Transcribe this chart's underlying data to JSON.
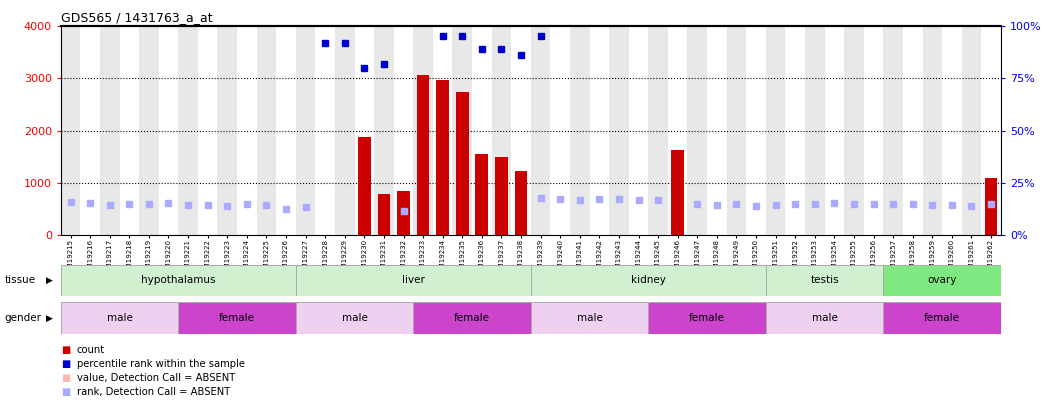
{
  "title": "GDS565 / 1431763_a_at",
  "samples": [
    "GSM19215",
    "GSM19216",
    "GSM19217",
    "GSM19218",
    "GSM19219",
    "GSM19220",
    "GSM19221",
    "GSM19222",
    "GSM19223",
    "GSM19224",
    "GSM19225",
    "GSM19226",
    "GSM19227",
    "GSM19228",
    "GSM19229",
    "GSM19230",
    "GSM19231",
    "GSM19232",
    "GSM19233",
    "GSM19234",
    "GSM19235",
    "GSM19236",
    "GSM19237",
    "GSM19238",
    "GSM19239",
    "GSM19240",
    "GSM19241",
    "GSM19242",
    "GSM19243",
    "GSM19244",
    "GSM19245",
    "GSM19246",
    "GSM19247",
    "GSM19248",
    "GSM19249",
    "GSM19250",
    "GSM19251",
    "GSM19252",
    "GSM19253",
    "GSM19254",
    "GSM19255",
    "GSM19256",
    "GSM19257",
    "GSM19258",
    "GSM19259",
    "GSM19260",
    "GSM19261",
    "GSM19262"
  ],
  "counts": [
    0,
    0,
    0,
    0,
    0,
    0,
    0,
    0,
    0,
    0,
    0,
    0,
    0,
    0,
    0,
    1875,
    780,
    840,
    3060,
    2980,
    2750,
    1550,
    1490,
    1230,
    0,
    0,
    0,
    0,
    0,
    0,
    0,
    1620,
    0,
    0,
    0,
    0,
    0,
    0,
    0,
    0,
    0,
    0,
    0,
    0,
    0,
    0,
    0,
    1100
  ],
  "percentile_pct": [
    null,
    null,
    null,
    null,
    null,
    null,
    null,
    null,
    null,
    null,
    null,
    null,
    null,
    92,
    92,
    80,
    81.75,
    null,
    null,
    95.5,
    95.5,
    89,
    89,
    86.25,
    95.5,
    null,
    null,
    null,
    null,
    null,
    null,
    null,
    null,
    null,
    null,
    null,
    null,
    null,
    null,
    null,
    null,
    null,
    null,
    null,
    null,
    null,
    null,
    null
  ],
  "absent_ranks": [
    630,
    620,
    580,
    600,
    590,
    620,
    580,
    570,
    560,
    600,
    570,
    500,
    530,
    null,
    null,
    null,
    null,
    460,
    null,
    null,
    null,
    null,
    null,
    null,
    700,
    680,
    670,
    680,
    690,
    660,
    660,
    null,
    600,
    570,
    590,
    560,
    580,
    600,
    590,
    610,
    590,
    590,
    600,
    590,
    580,
    580,
    560,
    590
  ],
  "tissues": [
    {
      "label": "hypothalamus",
      "start": 0,
      "end": 11,
      "color": "#d0f0d0"
    },
    {
      "label": "liver",
      "start": 12,
      "end": 23,
      "color": "#d0f0d0"
    },
    {
      "label": "kidney",
      "start": 24,
      "end": 35,
      "color": "#d0f0d0"
    },
    {
      "label": "testis",
      "start": 36,
      "end": 41,
      "color": "#d0f0d0"
    },
    {
      "label": "ovary",
      "start": 42,
      "end": 47,
      "color": "#80e880"
    }
  ],
  "genders": [
    {
      "label": "male",
      "start": 0,
      "end": 5,
      "color": "#f0d0f0"
    },
    {
      "label": "female",
      "start": 6,
      "end": 11,
      "color": "#cc44cc"
    },
    {
      "label": "male",
      "start": 12,
      "end": 17,
      "color": "#f0d0f0"
    },
    {
      "label": "female",
      "start": 18,
      "end": 23,
      "color": "#cc44cc"
    },
    {
      "label": "male",
      "start": 24,
      "end": 29,
      "color": "#f0d0f0"
    },
    {
      "label": "female",
      "start": 30,
      "end": 35,
      "color": "#cc44cc"
    },
    {
      "label": "male",
      "start": 36,
      "end": 41,
      "color": "#f0d0f0"
    },
    {
      "label": "female",
      "start": 42,
      "end": 47,
      "color": "#cc44cc"
    }
  ],
  "bar_color": "#cc0000",
  "dot_color": "#0000cc",
  "absent_rank_color": "#aaaaff",
  "absent_value_color": "#ffb0b0",
  "col_bg_even": "#e8e8e8",
  "col_bg_odd": "#ffffff"
}
